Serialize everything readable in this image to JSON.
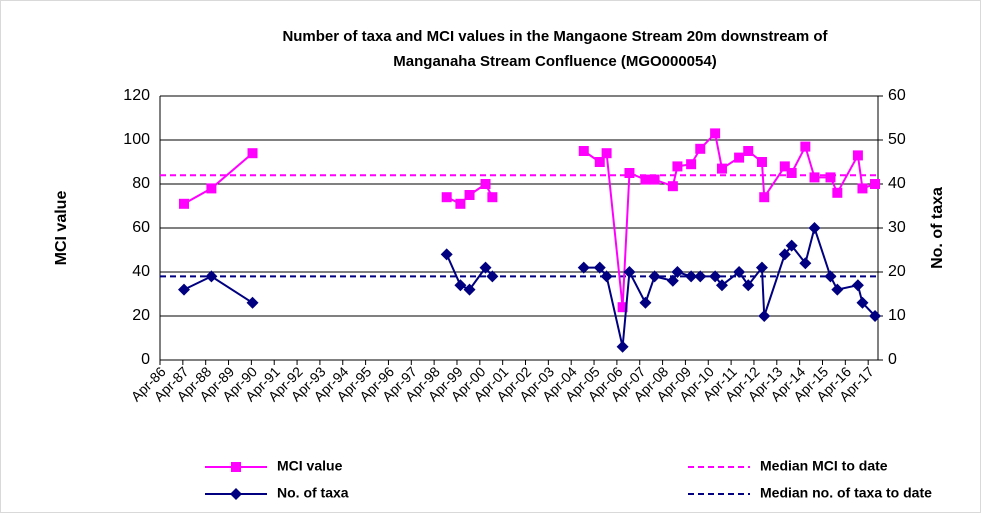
{
  "chart_data": {
    "type": "line",
    "title": [
      "Number of taxa and MCI values in the  Mangaone Stream 20m downstream of",
      "Manganaha Stream Confluence (MGO000054)"
    ],
    "ylabel": "MCI value",
    "y2label": "No. of taxa",
    "x": [
      1987.3,
      1988.5,
      1990.3,
      null,
      1998.8,
      1999.4,
      1999.8,
      2000.5,
      2000.8,
      null,
      2004.8,
      2005.5,
      2005.8,
      2006.5,
      2006.8,
      2007.5,
      2007.9,
      2008.7,
      2008.9,
      2009.5,
      2009.9,
      2010.55,
      2010.85,
      2011.6,
      2012.0,
      2012.6,
      2012.7,
      2013.6,
      2013.9,
      2014.5,
      2014.9,
      2015.6,
      2015.9,
      2016.8,
      2017.0,
      2017.55
    ],
    "series": [
      {
        "name": "MCI value",
        "color": "#ff00ff",
        "marker": "square",
        "values": [
          71,
          78,
          94,
          null,
          74,
          71,
          75,
          80,
          74,
          null,
          95,
          90,
          94,
          24,
          85,
          82,
          82,
          79,
          88,
          89,
          96,
          103,
          87,
          92,
          95,
          90,
          74,
          88,
          85,
          97,
          83,
          83,
          76,
          93,
          78,
          80
        ]
      },
      {
        "name": "No. of taxa",
        "color": "#000080",
        "marker": "diamond",
        "axis": "y2",
        "values": [
          16,
          19,
          13,
          null,
          24,
          17,
          16,
          21,
          19,
          null,
          21,
          21,
          19,
          3,
          20,
          13,
          19,
          18,
          20,
          19,
          19,
          19,
          17,
          20,
          17,
          21,
          10,
          24,
          26,
          22,
          30,
          19,
          16,
          17,
          13,
          10
        ]
      }
    ],
    "medians": [
      {
        "name": "Median MCI to date",
        "color": "#ff00ff",
        "value": 84
      },
      {
        "name": "Median no. of taxa to date",
        "color": "#000080",
        "value": 19,
        "axis": "y2"
      }
    ],
    "xlim": [
      1986.25,
      2017.68
    ],
    "xticks": [
      {
        "value": 1986.25,
        "label": "Apr-86"
      },
      {
        "value": 1987.25,
        "label": "Apr-87"
      },
      {
        "value": 1988.25,
        "label": "Apr-88"
      },
      {
        "value": 1989.25,
        "label": "Apr-89"
      },
      {
        "value": 1990.25,
        "label": "Apr-90"
      },
      {
        "value": 1991.25,
        "label": "Apr-91"
      },
      {
        "value": 1992.25,
        "label": "Apr-92"
      },
      {
        "value": 1993.25,
        "label": "Apr-93"
      },
      {
        "value": 1994.25,
        "label": "Apr-94"
      },
      {
        "value": 1995.25,
        "label": "Apr-95"
      },
      {
        "value": 1996.25,
        "label": "Apr-96"
      },
      {
        "value": 1997.25,
        "label": "Apr-97"
      },
      {
        "value": 1998.25,
        "label": "Apr-98"
      },
      {
        "value": 1999.25,
        "label": "Apr-99"
      },
      {
        "value": 2000.25,
        "label": "Apr-00"
      },
      {
        "value": 2001.25,
        "label": "Apr-01"
      },
      {
        "value": 2002.25,
        "label": "Apr-02"
      },
      {
        "value": 2003.25,
        "label": "Apr-03"
      },
      {
        "value": 2004.25,
        "label": "Apr-04"
      },
      {
        "value": 2005.25,
        "label": "Apr-05"
      },
      {
        "value": 2006.25,
        "label": "Apr-06"
      },
      {
        "value": 2007.25,
        "label": "Apr-07"
      },
      {
        "value": 2008.25,
        "label": "Apr-08"
      },
      {
        "value": 2009.25,
        "label": "Apr-09"
      },
      {
        "value": 2010.25,
        "label": "Apr-10"
      },
      {
        "value": 2011.25,
        "label": "Apr-11"
      },
      {
        "value": 2012.25,
        "label": "Apr-12"
      },
      {
        "value": 2013.25,
        "label": "Apr-13"
      },
      {
        "value": 2014.25,
        "label": "Apr-14"
      },
      {
        "value": 2015.25,
        "label": "Apr-15"
      },
      {
        "value": 2016.25,
        "label": "Apr-16"
      },
      {
        "value": 2017.25,
        "label": "Apr-17"
      }
    ],
    "ylim": [
      0,
      120
    ],
    "yticks": [
      0,
      20,
      40,
      60,
      80,
      100,
      120
    ],
    "y2lim": [
      0,
      60
    ],
    "y2ticks": [
      0,
      10,
      20,
      30,
      40,
      50,
      60
    ],
    "grid": true
  }
}
